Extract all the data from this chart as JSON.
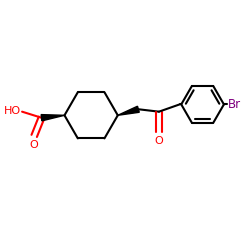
{
  "background_color": "#ffffff",
  "line_color": "#000000",
  "oxygen_color": "#ff0000",
  "bromine_color": "#800080",
  "line_width": 1.5,
  "figure_size": [
    2.5,
    2.5
  ],
  "dpi": 100,
  "xlim": [
    0,
    10
  ],
  "ylim": [
    0,
    10
  ]
}
